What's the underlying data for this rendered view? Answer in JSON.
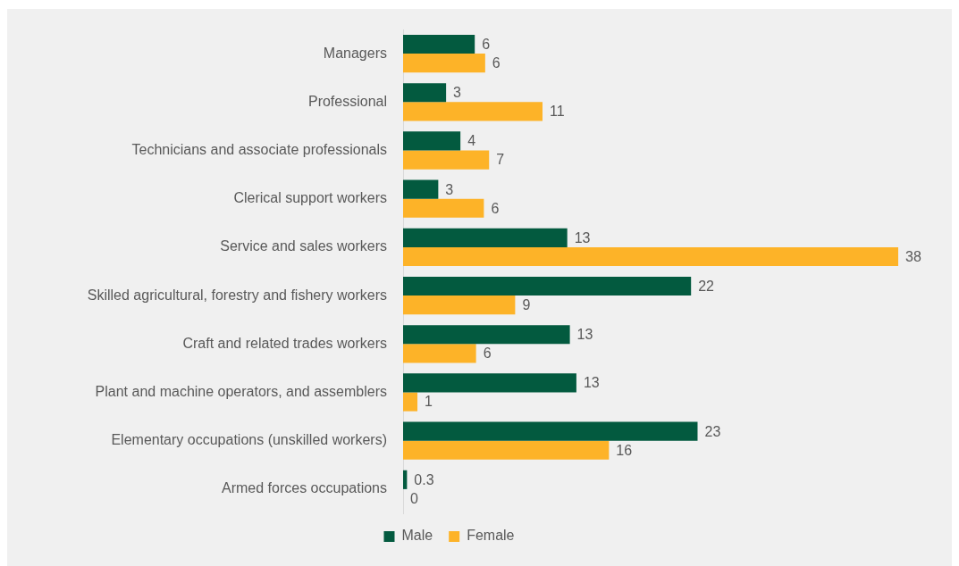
{
  "chart_data": {
    "type": "bar",
    "orientation": "horizontal",
    "categories": [
      "Managers",
      "Professional",
      "Technicians and associate professionals",
      "Clerical support workers",
      "Service and sales workers",
      "Skilled agricultural, forestry and fishery workers",
      "Craft and related trades workers",
      "Plant and machine operators, and assemblers",
      "Elementary occupations (unskilled workers)",
      "Armed forces occupations"
    ],
    "series": [
      {
        "name": "Male",
        "color": "#035a3f",
        "values": [
          5.5,
          3.3,
          4.4,
          2.7,
          12.6,
          22.1,
          12.8,
          13.3,
          22.6,
          0.3
        ],
        "value_labels": [
          "6",
          "3",
          "4",
          "3",
          "13",
          "22",
          "13",
          "13",
          "23",
          "0.3"
        ]
      },
      {
        "name": "Female",
        "color": "#fdb328",
        "values": [
          6.3,
          10.7,
          6.6,
          6.2,
          38,
          8.6,
          5.6,
          1.1,
          15.8,
          0
        ],
        "value_labels": [
          "6",
          "11",
          "7",
          "6",
          "38",
          "9",
          "6",
          "1",
          "16",
          "0"
        ]
      }
    ],
    "tick_labels": "y",
    "legend": "bottom"
  }
}
